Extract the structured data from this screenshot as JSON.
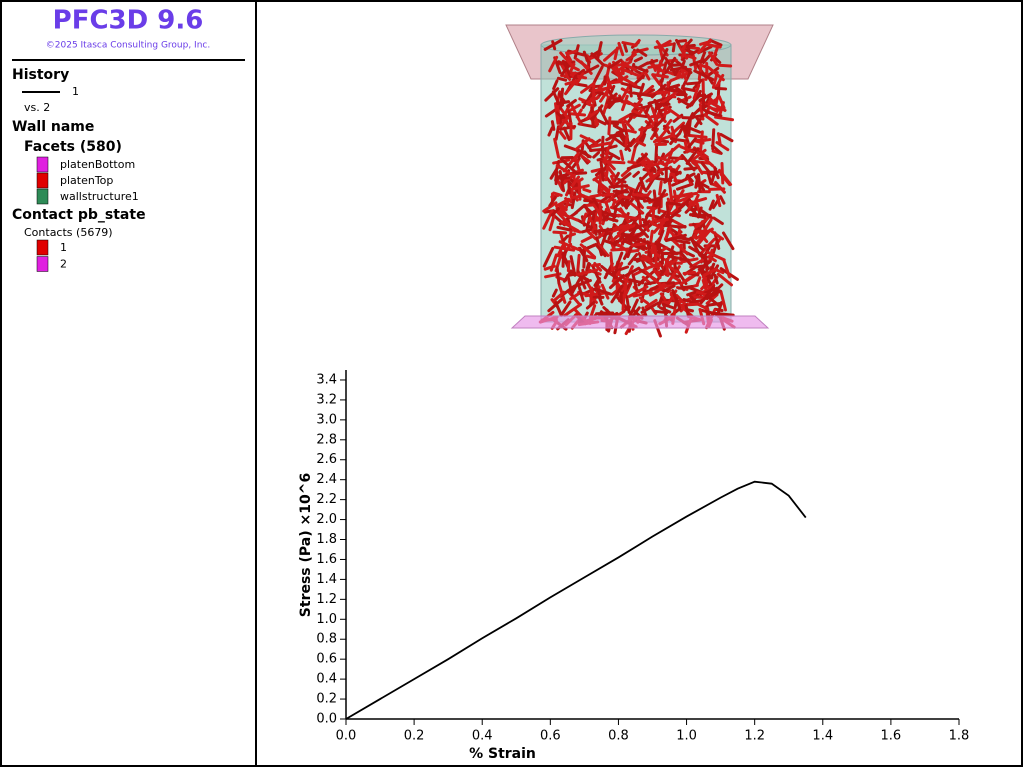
{
  "header": {
    "title": "PFC3D 9.6",
    "copyright": "©2025 Itasca Consulting Group, Inc."
  },
  "legend": {
    "history": {
      "heading": "History",
      "vs": "vs. 2"
    },
    "wall": {
      "heading": "Wall name",
      "facets": "Facets (580)",
      "items": [
        {
          "label": "platenBottom",
          "color": "#e020e0"
        },
        {
          "label": "platenTop",
          "color": "#e00000"
        },
        {
          "label": "wallstructure1",
          "color": "#2e8b57"
        }
      ]
    },
    "contact": {
      "heading": "Contact pb_state",
      "contacts": "Contacts (5679)",
      "items": [
        {
          "label": "1",
          "color": "#e00000"
        },
        {
          "label": "2",
          "color": "#e020e0"
        }
      ]
    }
  },
  "chart_data": {
    "type": "line",
    "xlabel": "% Strain",
    "ylabel": "Stress (Pa) ×10^6",
    "x": [
      0,
      0.1,
      0.2,
      0.3,
      0.4,
      0.5,
      0.6,
      0.7,
      0.8,
      0.9,
      1.0,
      1.1,
      1.15,
      1.2,
      1.25,
      1.3,
      1.35
    ],
    "series": [
      {
        "name": "1",
        "color": "#000000",
        "values": [
          0,
          0.2,
          0.4,
          0.6,
          0.81,
          1.01,
          1.22,
          1.42,
          1.62,
          1.83,
          2.03,
          2.22,
          2.31,
          2.38,
          2.36,
          2.24,
          2.02
        ]
      }
    ],
    "xlim": [
      0,
      1.8
    ],
    "xticks": [
      {
        "value": 0,
        "label": "0.0"
      },
      0.2,
      0.4,
      0.6,
      0.8,
      {
        "value": 1,
        "label": "1.0"
      },
      1.2,
      1.4,
      1.6,
      1.8
    ],
    "ylim": [
      0,
      3.5
    ],
    "yticks": [
      {
        "value": 0,
        "label": "0.0"
      },
      0.2,
      0.4,
      0.6,
      0.8,
      {
        "value": 1,
        "label": "1.0"
      },
      1.2,
      1.4,
      1.6,
      1.8,
      {
        "value": 2,
        "label": "2.0"
      },
      2.2,
      2.4,
      2.6,
      2.8,
      {
        "value": 3,
        "label": "3.0"
      },
      3.2,
      3.4
    ]
  }
}
